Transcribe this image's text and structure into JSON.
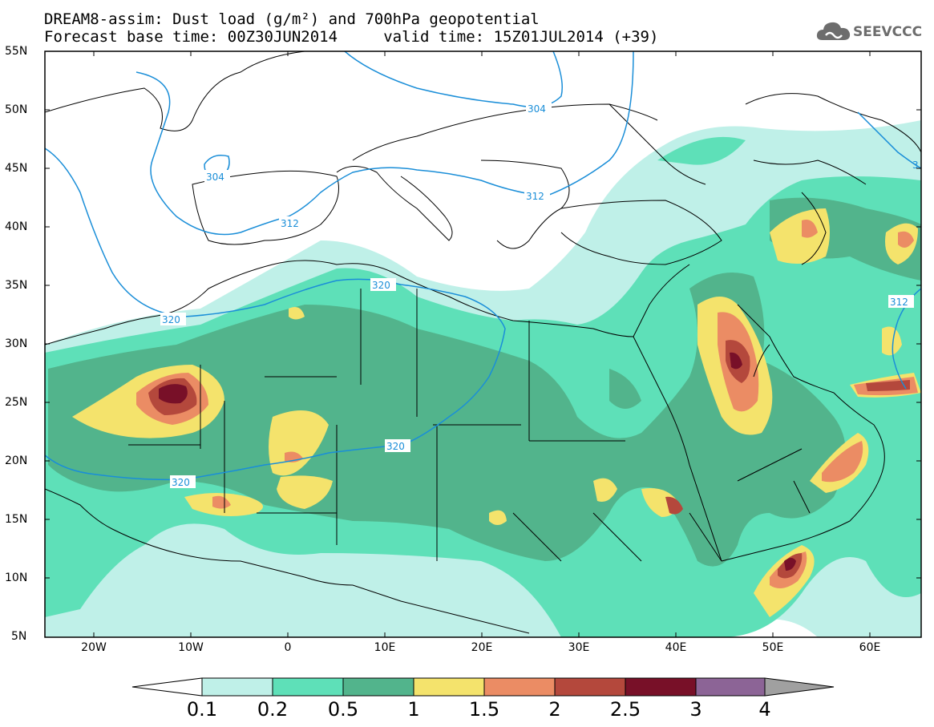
{
  "title_line1": "DREAM8-assim: Dust load (g/m²) and 700hPa geopotential",
  "title_line2": "Forecast base time: 00Z30JUN2014     valid time: 15Z01JUL2014 (+39)",
  "logo_text": "SEEVCCC",
  "lat_labels": [
    "55N",
    "50N",
    "45N",
    "40N",
    "35N",
    "30N",
    "25N",
    "20N",
    "15N",
    "10N",
    "5N"
  ],
  "lon_labels": [
    "20W",
    "10W",
    "0",
    "10E",
    "20E",
    "30E",
    "40E",
    "50E",
    "60E"
  ],
  "contour_labels": [
    "304",
    "304",
    "312",
    "312",
    "312",
    "320",
    "320",
    "320",
    "320",
    "312",
    "3"
  ],
  "colorbar": {
    "labels": [
      "0.1",
      "0.2",
      "0.5",
      "1",
      "1.5",
      "2",
      "2.5",
      "3",
      "4"
    ],
    "colors": [
      "#ffffff",
      "#bff0e8",
      "#5ee0b8",
      "#52b48c",
      "#f4e36c",
      "#eb8c64",
      "#b4483c",
      "#781028",
      "#8c6496",
      "#a0a0a0"
    ]
  },
  "map_colors": {
    "isoline": "#1a8ed8",
    "border": "#000000",
    "level1": "#bff0e8",
    "level2": "#5ee0b8",
    "level3": "#52b48c",
    "level4": "#f4e36c",
    "level5": "#eb8c64",
    "level6": "#b4483c",
    "level7": "#781028"
  }
}
